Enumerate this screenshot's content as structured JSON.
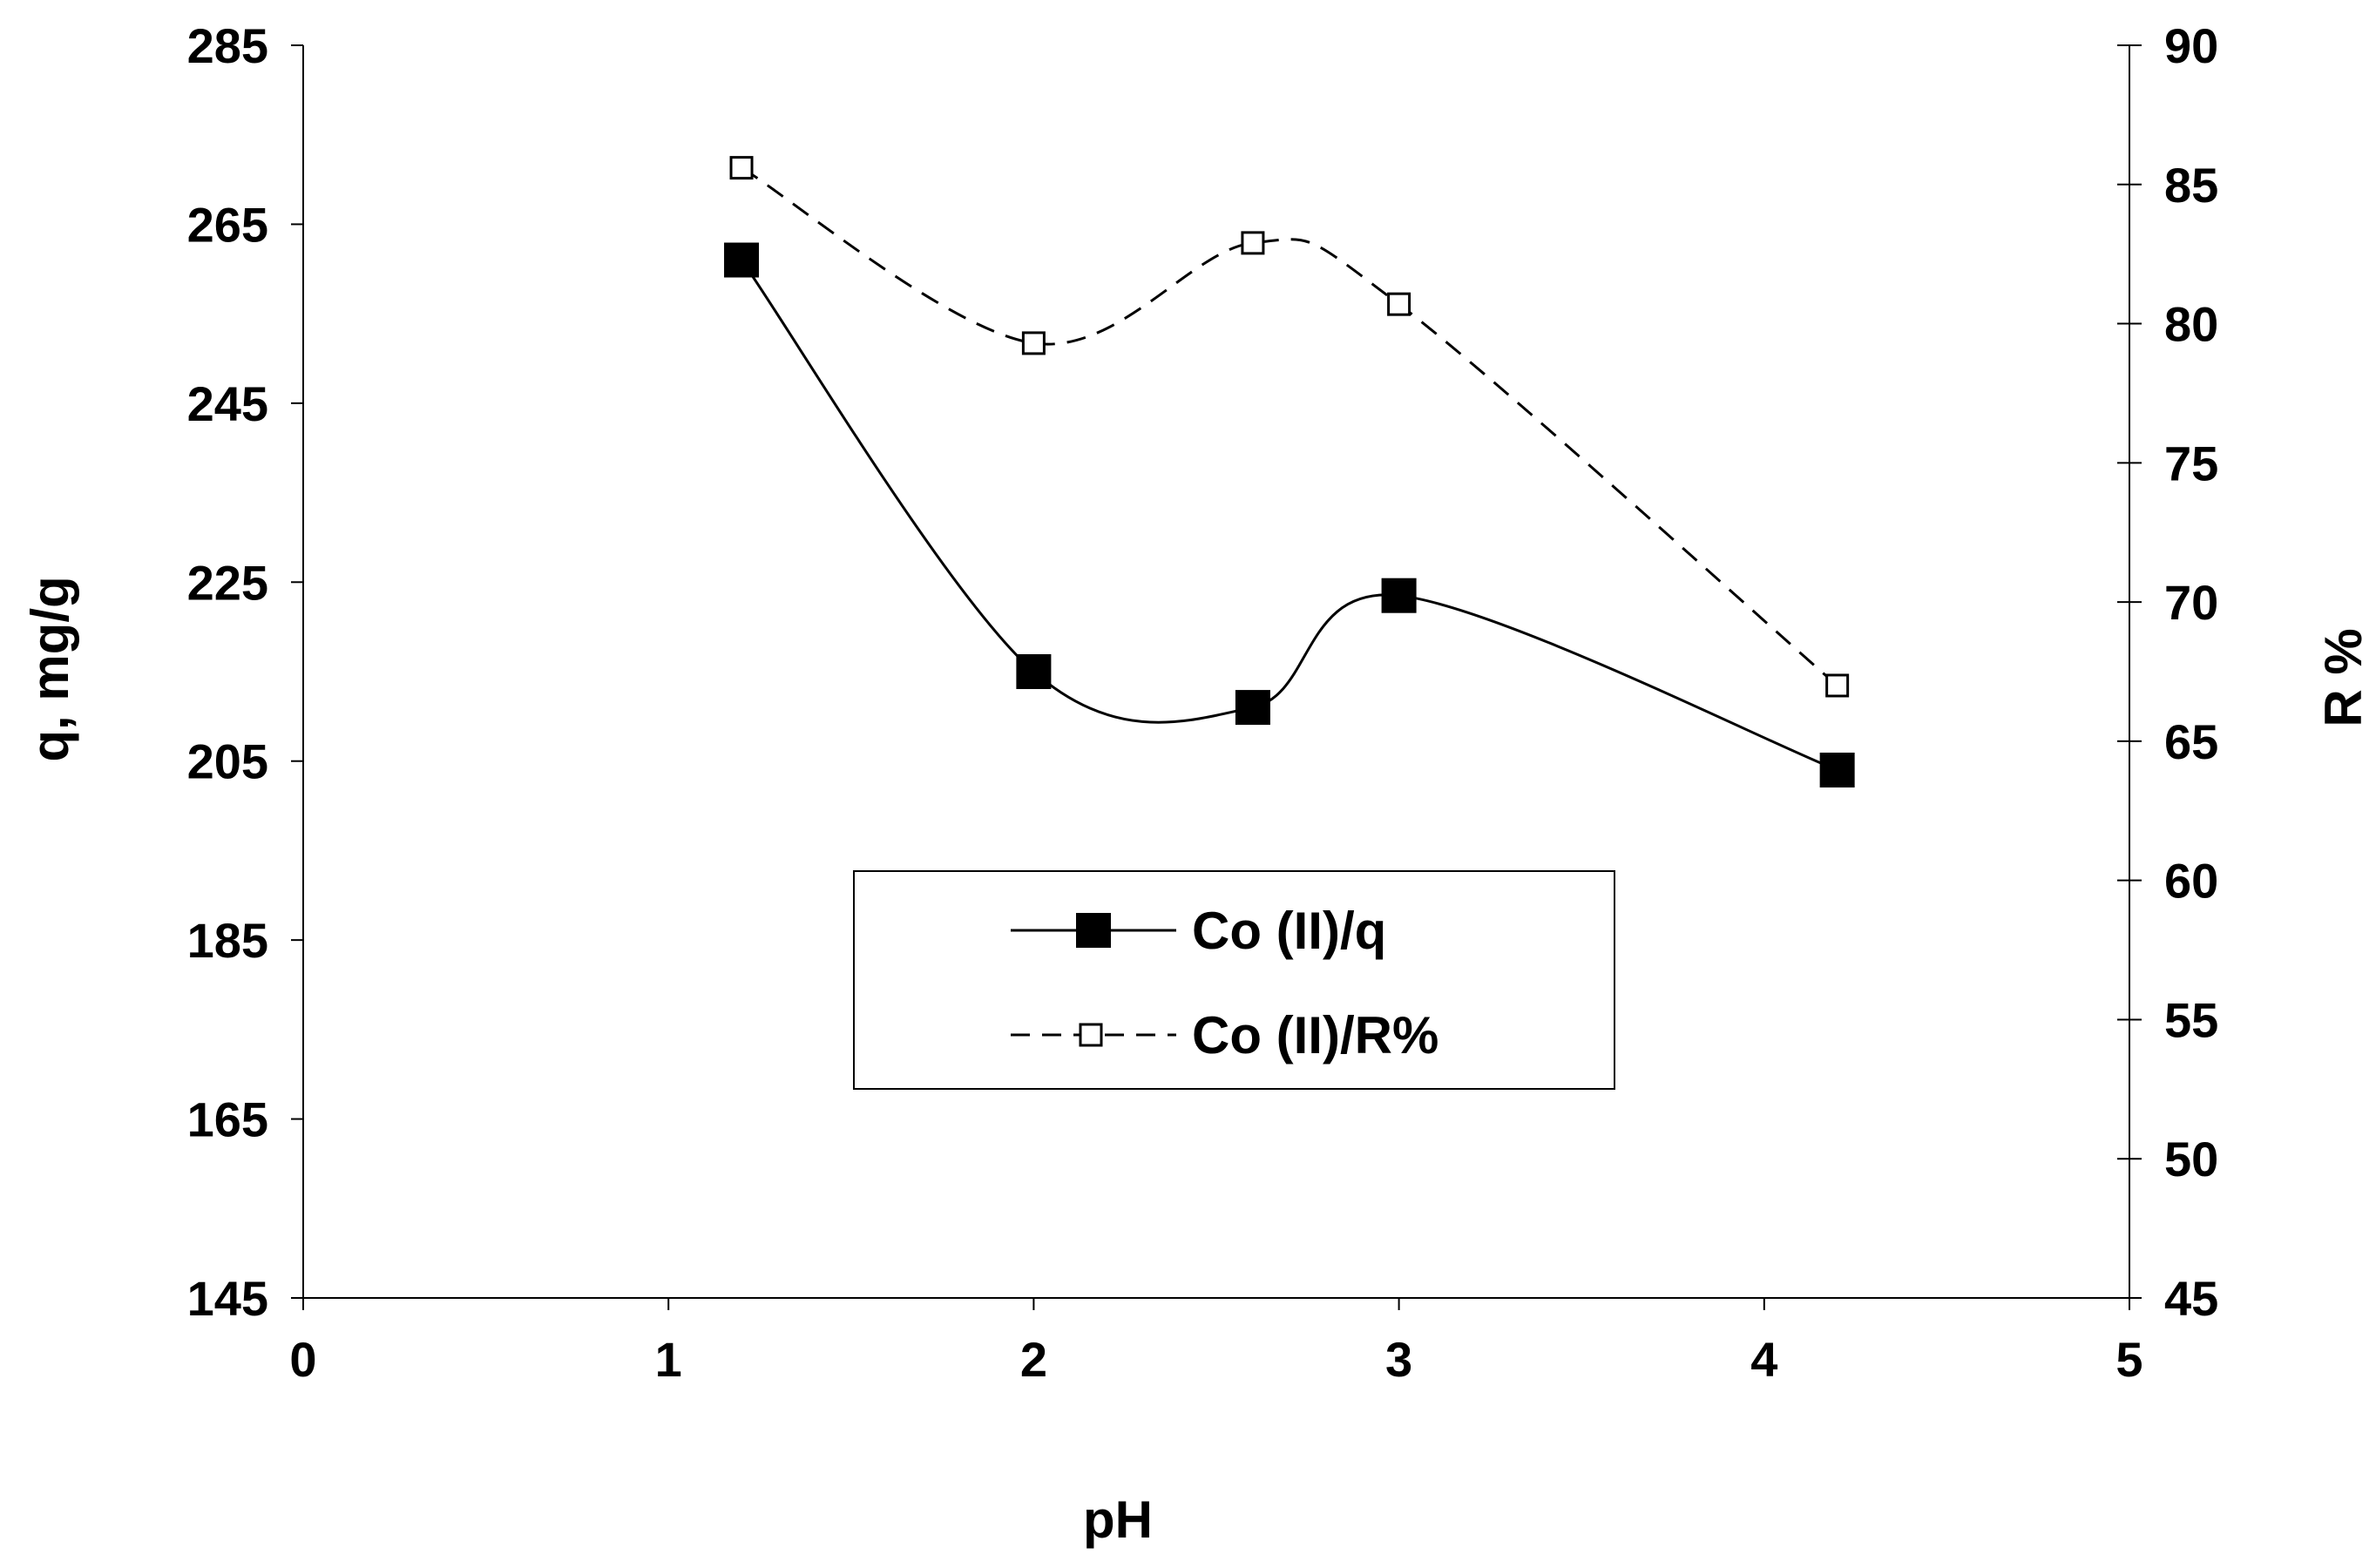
{
  "chart_data": {
    "type": "line",
    "xlabel": "pH",
    "ylabel": "q, mg/g",
    "y2label": "R %",
    "xlim": [
      0,
      5
    ],
    "ylim": [
      145,
      285
    ],
    "y2lim": [
      45,
      90
    ],
    "x_ticks": [
      "0",
      "1",
      "2",
      "3",
      "4",
      "5"
    ],
    "y_ticks": [
      "145",
      "165",
      "185",
      "205",
      "225",
      "245",
      "265",
      "285"
    ],
    "y2_ticks": [
      "45",
      "50",
      "55",
      "60",
      "65",
      "70",
      "75",
      "80",
      "85",
      "90"
    ],
    "grid": false,
    "legend_position": "center",
    "series": [
      {
        "name": "Co (II)/q",
        "axis": "left",
        "line_style": "solid",
        "marker": "filled-square",
        "color": "#000000",
        "x": [
          1.2,
          2.0,
          2.6,
          3.0,
          4.2
        ],
        "y": [
          261,
          215,
          211,
          223.5,
          204
        ]
      },
      {
        "name": "Co (II)/R%",
        "axis": "right",
        "line_style": "dashed",
        "marker": "open-square",
        "color": "#000000",
        "x": [
          1.2,
          2.0,
          2.6,
          3.0,
          4.2
        ],
        "y": [
          85.6,
          79.3,
          82.9,
          80.7,
          67.0
        ]
      }
    ]
  }
}
